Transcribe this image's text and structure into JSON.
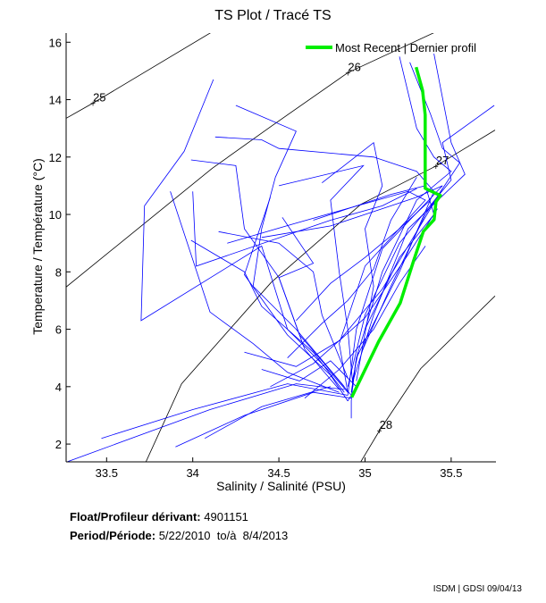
{
  "chart_data": {
    "type": "line",
    "title": "TS Plot / Tracé TS",
    "xlabel": "Salinity / Salinité (PSU)",
    "ylabel": "Temperature / Température (°C)",
    "xlim": [
      33.265,
      35.76
    ],
    "ylim": [
      1.38,
      16.32
    ],
    "xticks": [
      33.5,
      34,
      34.5,
      35,
      35.5
    ],
    "xtick_labels": [
      "33.5",
      "34",
      "34.5",
      "35",
      "35.5"
    ],
    "yticks": [
      2,
      4,
      6,
      8,
      10,
      12,
      14,
      16
    ],
    "ytick_labels": [
      "2",
      "4",
      "6",
      "8",
      "10",
      "12",
      "14",
      "16"
    ],
    "grid": false,
    "legend": {
      "placement": "top-right",
      "entries": [
        "Most Recent | Dernier profil"
      ]
    },
    "colors": {
      "profiles": "#0000ff",
      "recent": "#00ee00",
      "density": "#000000"
    },
    "density_contours": [
      {
        "label": "25",
        "label_at": [
          33.421,
          13.88
        ],
        "points": [
          [
            33.265,
            13.35
          ],
          [
            33.421,
            13.88
          ],
          [
            34.117,
            16.38
          ]
        ]
      },
      {
        "label": "26",
        "label_at": [
          34.901,
          14.94
        ],
        "points": [
          [
            33.265,
            7.47
          ],
          [
            34.112,
            11.6
          ],
          [
            34.455,
            13.07
          ],
          [
            34.901,
            14.94
          ],
          [
            35.417,
            16.38
          ]
        ]
      },
      {
        "label": "27",
        "label_at": [
          35.412,
          11.69
        ],
        "points": [
          [
            33.728,
            1.38
          ],
          [
            33.935,
            4.1
          ],
          [
            34.455,
            7.63
          ],
          [
            34.975,
            10.35
          ],
          [
            35.412,
            11.69
          ],
          [
            35.755,
            12.94
          ]
        ]
      },
      {
        "label": "28",
        "label_at": [
          35.084,
          2.47
        ],
        "points": [
          [
            34.975,
            1.38
          ],
          [
            35.084,
            2.47
          ],
          [
            35.323,
            4.63
          ],
          [
            35.755,
            7.16
          ]
        ]
      }
    ],
    "most_recent": [
      [
        35.297,
        15.13
      ],
      [
        35.334,
        14.32
      ],
      [
        35.349,
        13.47
      ],
      [
        35.349,
        11.6
      ],
      [
        35.349,
        10.91
      ],
      [
        35.401,
        10.76
      ],
      [
        35.438,
        10.66
      ],
      [
        35.412,
        10.44
      ],
      [
        35.401,
        9.82
      ],
      [
        35.339,
        9.41
      ],
      [
        35.282,
        8.38
      ],
      [
        35.204,
        6.91
      ],
      [
        35.079,
        5.57
      ],
      [
        34.923,
        3.63
      ]
    ],
    "profiles": [
      [
        [
          34.12,
          14.7
        ],
        [
          33.95,
          12.2
        ],
        [
          33.72,
          10.3
        ],
        [
          33.7,
          6.3
        ],
        [
          34.4,
          8.9
        ],
        [
          34.55,
          6.0
        ],
        [
          34.8,
          4.5
        ],
        [
          34.9,
          3.8
        ]
      ],
      [
        [
          33.99,
          11.9
        ],
        [
          34.25,
          11.7
        ],
        [
          34.3,
          9.5
        ],
        [
          34.5,
          7.8
        ],
        [
          34.62,
          5.8
        ],
        [
          34.85,
          4.2
        ],
        [
          34.92,
          3.7
        ]
      ],
      [
        [
          33.27,
          1.38
        ],
        [
          34.1,
          3.2
        ],
        [
          34.6,
          4.1
        ],
        [
          34.88,
          3.9
        ]
      ],
      [
        [
          33.47,
          2.2
        ],
        [
          34.0,
          3.2
        ],
        [
          34.55,
          4.1
        ],
        [
          34.9,
          3.7
        ]
      ],
      [
        [
          33.9,
          1.9
        ],
        [
          34.3,
          3.0
        ],
        [
          34.7,
          3.8
        ],
        [
          34.92,
          3.6
        ]
      ],
      [
        [
          34.07,
          2.2
        ],
        [
          34.4,
          3.3
        ],
        [
          34.8,
          4.0
        ]
      ],
      [
        [
          34.13,
          12.7
        ],
        [
          34.4,
          12.6
        ],
        [
          34.5,
          12.3
        ],
        [
          35.05,
          12.0
        ],
        [
          35.3,
          11.5
        ],
        [
          35.4,
          10.8
        ],
        [
          35.2,
          8.0
        ],
        [
          34.95,
          5.0
        ],
        [
          34.92,
          3.8
        ]
      ],
      [
        [
          34.25,
          13.8
        ],
        [
          34.6,
          12.9
        ],
        [
          34.48,
          11.3
        ],
        [
          34.4,
          9.5
        ],
        [
          34.35,
          7.5
        ],
        [
          34.6,
          6.0
        ],
        [
          34.88,
          4.0
        ]
      ],
      [
        [
          34.5,
          11.0
        ],
        [
          34.99,
          11.7
        ],
        [
          34.8,
          10.5
        ],
        [
          34.85,
          8.0
        ],
        [
          34.9,
          6.0
        ],
        [
          34.93,
          4.0
        ]
      ],
      [
        [
          35.2,
          15.5
        ],
        [
          35.3,
          13.0
        ],
        [
          35.4,
          12.0
        ],
        [
          35.5,
          11.5
        ],
        [
          35.3,
          10.5
        ],
        [
          35.1,
          8.0
        ],
        [
          34.95,
          5.0
        ],
        [
          34.92,
          3.6
        ]
      ],
      [
        [
          35.26,
          15.3
        ],
        [
          35.38,
          13.5
        ],
        [
          35.45,
          12.3
        ],
        [
          35.55,
          11.8
        ],
        [
          35.35,
          10.0
        ],
        [
          35.15,
          7.5
        ],
        [
          34.98,
          5.2
        ]
      ],
      [
        [
          35.4,
          15.6
        ],
        [
          35.5,
          12.5
        ],
        [
          35.58,
          11.4
        ],
        [
          35.25,
          9.5
        ],
        [
          35.05,
          6.5
        ],
        [
          34.93,
          4.2
        ]
      ],
      [
        [
          35.75,
          13.8
        ],
        [
          35.45,
          12.5
        ],
        [
          35.5,
          11.2
        ],
        [
          35.2,
          9.0
        ],
        [
          35.0,
          6.5
        ],
        [
          34.9,
          4.0
        ]
      ],
      [
        [
          34.75,
          11.1
        ],
        [
          35.05,
          12.5
        ],
        [
          35.1,
          11.0
        ],
        [
          35.0,
          9.5
        ],
        [
          35.05,
          7.5
        ],
        [
          34.95,
          4.2
        ]
      ],
      [
        [
          34.7,
          9.8
        ],
        [
          35.15,
          10.7
        ],
        [
          35.35,
          11.0
        ],
        [
          35.4,
          10.0
        ],
        [
          35.2,
          8.5
        ],
        [
          35.0,
          6.0
        ]
      ],
      [
        [
          34.4,
          9.2
        ],
        [
          34.8,
          9.6
        ],
        [
          35.1,
          10.2
        ],
        [
          35.3,
          10.6
        ],
        [
          35.45,
          11.0
        ],
        [
          35.1,
          8.8
        ],
        [
          34.95,
          6.0
        ],
        [
          34.9,
          3.7
        ]
      ],
      [
        [
          34.2,
          9.0
        ],
        [
          34.6,
          9.7
        ],
        [
          35.25,
          10.8
        ],
        [
          35.35,
          10.5
        ],
        [
          35.0,
          8.2
        ],
        [
          34.85,
          5.5
        ],
        [
          34.9,
          3.8
        ]
      ],
      [
        [
          34.52,
          9.9
        ],
        [
          34.7,
          8.3
        ],
        [
          34.5,
          7.8
        ],
        [
          34.65,
          5.3
        ],
        [
          34.85,
          3.9
        ]
      ],
      [
        [
          34.45,
          10.6
        ],
        [
          34.3,
          7.9
        ],
        [
          34.55,
          5.8
        ],
        [
          34.8,
          4.4
        ],
        [
          34.9,
          3.5
        ]
      ],
      [
        [
          33.99,
          9.1
        ],
        [
          34.3,
          8.0
        ],
        [
          34.4,
          6.8
        ],
        [
          34.7,
          5.2
        ],
        [
          34.88,
          3.8
        ]
      ],
      [
        [
          33.87,
          10.8
        ],
        [
          34.1,
          6.6
        ],
        [
          34.35,
          5.5
        ],
        [
          34.55,
          4.5
        ],
        [
          34.85,
          3.8
        ]
      ],
      [
        [
          34.0,
          10.8
        ],
        [
          34.02,
          8.2
        ],
        [
          34.8,
          9.8
        ],
        [
          35.1,
          10.3
        ],
        [
          35.3,
          10.9
        ]
      ],
      [
        [
          34.15,
          9.4
        ],
        [
          34.5,
          9.0
        ],
        [
          34.7,
          8.0
        ],
        [
          34.75,
          6.5
        ],
        [
          34.9,
          4.3
        ]
      ],
      [
        [
          34.6,
          6.3
        ],
        [
          34.8,
          7.6
        ],
        [
          35.0,
          8.5
        ],
        [
          35.2,
          9.5
        ],
        [
          35.38,
          10.5
        ]
      ],
      [
        [
          34.3,
          5.2
        ],
        [
          34.6,
          4.7
        ],
        [
          34.85,
          5.6
        ],
        [
          35.1,
          7.4
        ],
        [
          35.3,
          9.4
        ],
        [
          35.45,
          10.9
        ]
      ],
      [
        [
          34.45,
          4.0
        ],
        [
          34.7,
          4.8
        ],
        [
          35.0,
          6.4
        ],
        [
          35.25,
          8.6
        ],
        [
          35.42,
          10.2
        ]
      ],
      [
        [
          34.65,
          3.6
        ],
        [
          34.85,
          4.6
        ],
        [
          35.05,
          6.0
        ],
        [
          35.2,
          7.6
        ],
        [
          35.35,
          8.9
        ]
      ],
      [
        [
          34.55,
          5.0
        ],
        [
          34.75,
          6.2
        ],
        [
          34.9,
          7.0
        ],
        [
          35.05,
          8.1
        ],
        [
          35.15,
          9.8
        ],
        [
          35.3,
          11.3
        ]
      ],
      [
        [
          34.92,
          2.9
        ],
        [
          34.92,
          3.5
        ],
        [
          34.93,
          4.3
        ],
        [
          34.96,
          5.2
        ]
      ],
      [
        [
          34.4,
          4.6
        ],
        [
          34.62,
          4.2
        ],
        [
          34.8,
          4.9
        ],
        [
          34.95,
          4.0
        ],
        [
          34.9,
          3.5
        ]
      ]
    ]
  },
  "info": {
    "float_label": "Float/Profileur dérivant:",
    "float_id": "4901151",
    "period_label": "Period/Période:",
    "period_value": "5/22/2010  to/à  8/4/2013"
  },
  "credit": "ISDM | GDSI  09/04/13"
}
